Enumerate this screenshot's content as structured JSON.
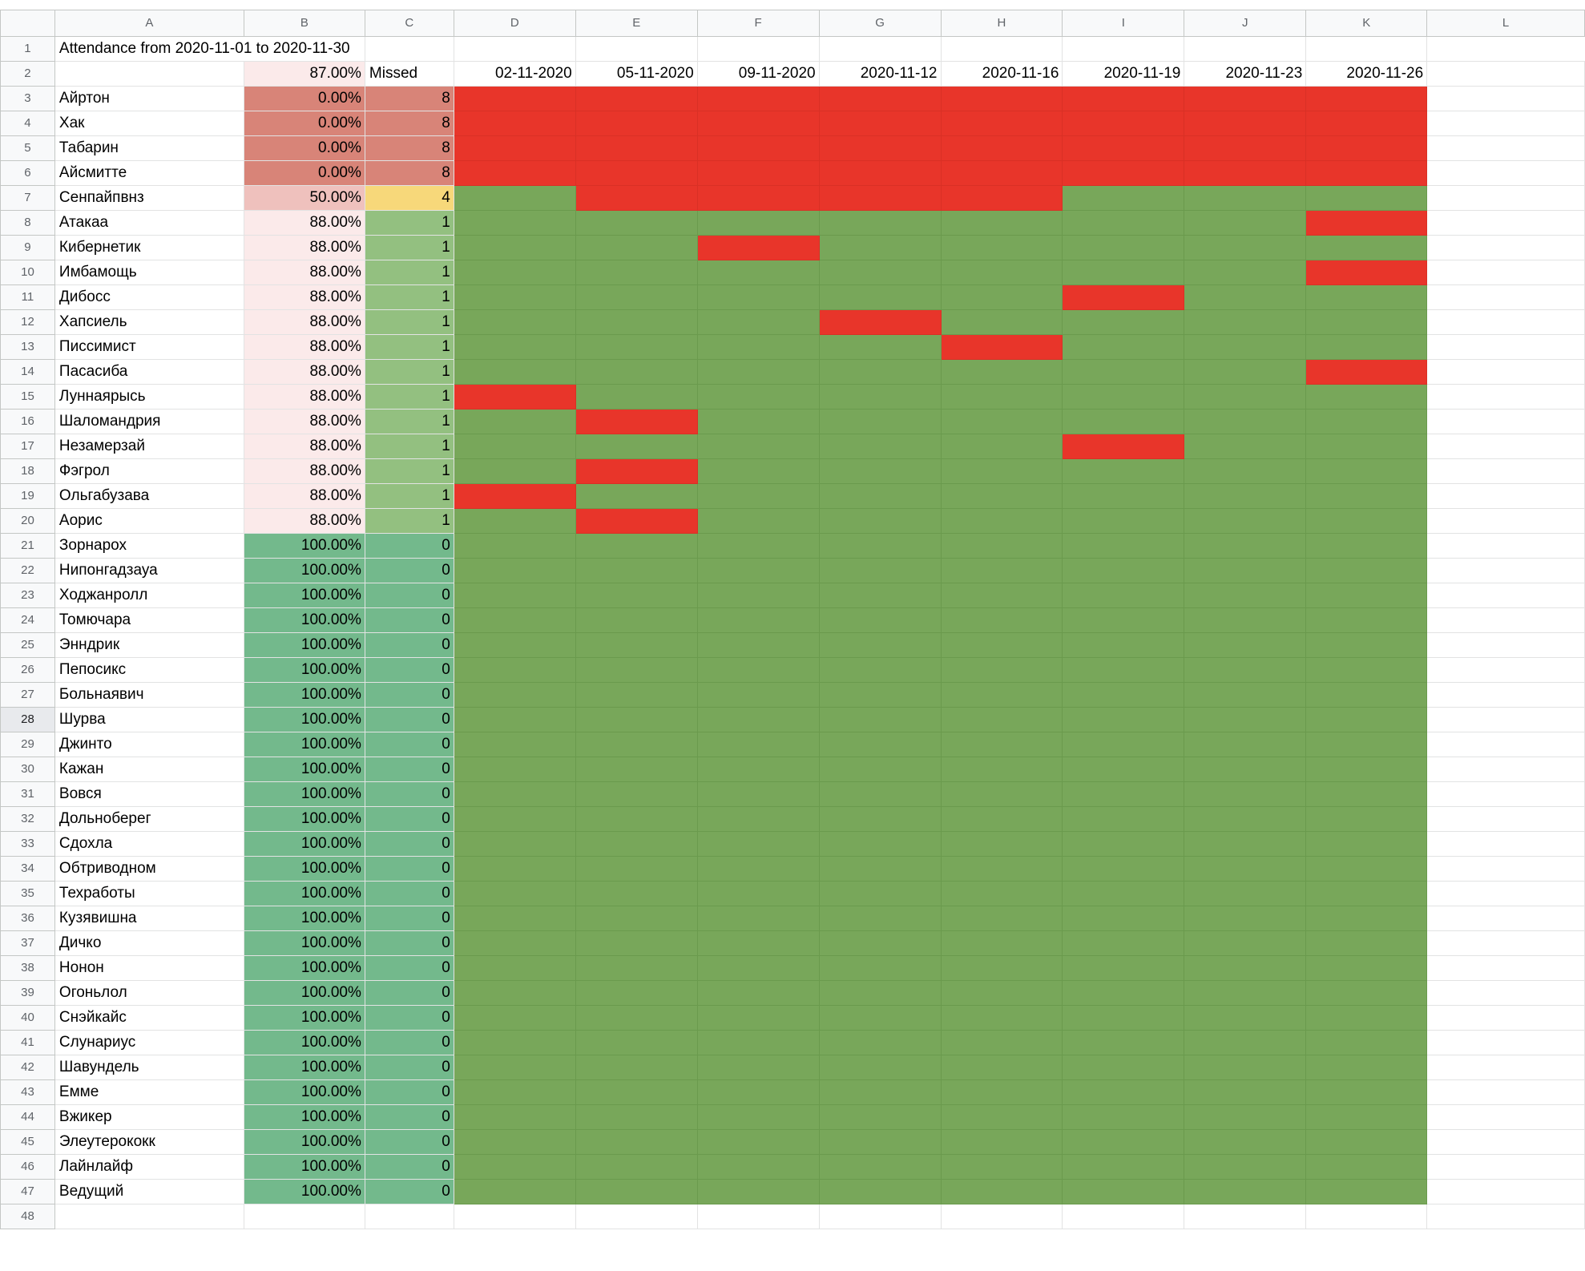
{
  "sheet": {
    "columns": [
      "A",
      "B",
      "C",
      "D",
      "E",
      "F",
      "G",
      "H",
      "I",
      "J",
      "K",
      "L"
    ],
    "title": "Attendance from 2020-11-01 to 2020-11-30",
    "overall_percent": "87.00%",
    "missed_label": "Missed",
    "dates": [
      "02-11-2020",
      "05-11-2020",
      "09-11-2020",
      "2020-11-12",
      "2020-11-16",
      "2020-11-19",
      "2020-11-23",
      "2020-11-26"
    ],
    "selected_row": "28",
    "extra_row": "48",
    "rows": [
      {
        "num": "3",
        "name": "Айртон",
        "pct": "0.00%",
        "missed": "8",
        "absent": [
          0,
          1,
          2,
          3,
          4,
          5,
          6,
          7
        ]
      },
      {
        "num": "4",
        "name": "Хак",
        "pct": "0.00%",
        "missed": "8",
        "absent": [
          0,
          1,
          2,
          3,
          4,
          5,
          6,
          7
        ]
      },
      {
        "num": "5",
        "name": "Табарин",
        "pct": "0.00%",
        "missed": "8",
        "absent": [
          0,
          1,
          2,
          3,
          4,
          5,
          6,
          7
        ]
      },
      {
        "num": "6",
        "name": "Айсмитте",
        "pct": "0.00%",
        "missed": "8",
        "absent": [
          0,
          1,
          2,
          3,
          4,
          5,
          6,
          7
        ]
      },
      {
        "num": "7",
        "name": "Сенпайпвнз",
        "pct": "50.00%",
        "missed": "4",
        "absent": [
          1,
          2,
          3,
          4
        ]
      },
      {
        "num": "8",
        "name": "Атакаа",
        "pct": "88.00%",
        "missed": "1",
        "absent": [
          7
        ]
      },
      {
        "num": "9",
        "name": "Кибернетик",
        "pct": "88.00%",
        "missed": "1",
        "absent": [
          2
        ]
      },
      {
        "num": "10",
        "name": "Имбамощь",
        "pct": "88.00%",
        "missed": "1",
        "absent": [
          7
        ]
      },
      {
        "num": "11",
        "name": "Дибосс",
        "pct": "88.00%",
        "missed": "1",
        "absent": [
          5
        ]
      },
      {
        "num": "12",
        "name": "Хапсиель",
        "pct": "88.00%",
        "missed": "1",
        "absent": [
          3
        ]
      },
      {
        "num": "13",
        "name": "Писсимист",
        "pct": "88.00%",
        "missed": "1",
        "absent": [
          4
        ]
      },
      {
        "num": "14",
        "name": "Пасасиба",
        "pct": "88.00%",
        "missed": "1",
        "absent": [
          7
        ]
      },
      {
        "num": "15",
        "name": "Луннаярысь",
        "pct": "88.00%",
        "missed": "1",
        "absent": [
          0
        ]
      },
      {
        "num": "16",
        "name": "Шаломандрия",
        "pct": "88.00%",
        "missed": "1",
        "absent": [
          1
        ]
      },
      {
        "num": "17",
        "name": "Незамерзай",
        "pct": "88.00%",
        "missed": "1",
        "absent": [
          5
        ]
      },
      {
        "num": "18",
        "name": "Фэгрол",
        "pct": "88.00%",
        "missed": "1",
        "absent": [
          1
        ]
      },
      {
        "num": "19",
        "name": "Ольгабузава",
        "pct": "88.00%",
        "missed": "1",
        "absent": [
          0
        ]
      },
      {
        "num": "20",
        "name": "Аорис",
        "pct": "88.00%",
        "missed": "1",
        "absent": [
          1
        ]
      },
      {
        "num": "21",
        "name": "Зорнарох",
        "pct": "100.00%",
        "missed": "0",
        "absent": []
      },
      {
        "num": "22",
        "name": "Нипонгадзауа",
        "pct": "100.00%",
        "missed": "0",
        "absent": []
      },
      {
        "num": "23",
        "name": "Ходжанролл",
        "pct": "100.00%",
        "missed": "0",
        "absent": []
      },
      {
        "num": "24",
        "name": "Томючара",
        "pct": "100.00%",
        "missed": "0",
        "absent": []
      },
      {
        "num": "25",
        "name": "Энндрик",
        "pct": "100.00%",
        "missed": "0",
        "absent": []
      },
      {
        "num": "26",
        "name": "Пепосикс",
        "pct": "100.00%",
        "missed": "0",
        "absent": []
      },
      {
        "num": "27",
        "name": "Больнаявич",
        "pct": "100.00%",
        "missed": "0",
        "absent": []
      },
      {
        "num": "28",
        "name": "Шурва",
        "pct": "100.00%",
        "missed": "0",
        "absent": []
      },
      {
        "num": "29",
        "name": "Джинто",
        "pct": "100.00%",
        "missed": "0",
        "absent": []
      },
      {
        "num": "30",
        "name": "Кажан",
        "pct": "100.00%",
        "missed": "0",
        "absent": []
      },
      {
        "num": "31",
        "name": "Вовся",
        "pct": "100.00%",
        "missed": "0",
        "absent": []
      },
      {
        "num": "32",
        "name": "Дольноберег",
        "pct": "100.00%",
        "missed": "0",
        "absent": []
      },
      {
        "num": "33",
        "name": "Сдохла",
        "pct": "100.00%",
        "missed": "0",
        "absent": []
      },
      {
        "num": "34",
        "name": "Обтриводном",
        "pct": "100.00%",
        "missed": "0",
        "absent": []
      },
      {
        "num": "35",
        "name": "Техработы",
        "pct": "100.00%",
        "missed": "0",
        "absent": []
      },
      {
        "num": "36",
        "name": "Кузявишна",
        "pct": "100.00%",
        "missed": "0",
        "absent": []
      },
      {
        "num": "37",
        "name": "Дичко",
        "pct": "100.00%",
        "missed": "0",
        "absent": []
      },
      {
        "num": "38",
        "name": "Нонон",
        "pct": "100.00%",
        "missed": "0",
        "absent": []
      },
      {
        "num": "39",
        "name": "Огоньлол",
        "pct": "100.00%",
        "missed": "0",
        "absent": []
      },
      {
        "num": "40",
        "name": "Снэйкайс",
        "pct": "100.00%",
        "missed": "0",
        "absent": []
      },
      {
        "num": "41",
        "name": "Слунариус",
        "pct": "100.00%",
        "missed": "0",
        "absent": []
      },
      {
        "num": "42",
        "name": "Шавундель",
        "pct": "100.00%",
        "missed": "0",
        "absent": []
      },
      {
        "num": "43",
        "name": "Емме",
        "pct": "100.00%",
        "missed": "0",
        "absent": []
      },
      {
        "num": "44",
        "name": "Вжикер",
        "pct": "100.00%",
        "missed": "0",
        "absent": []
      },
      {
        "num": "45",
        "name": "Элеутерококк",
        "pct": "100.00%",
        "missed": "0",
        "absent": []
      },
      {
        "num": "46",
        "name": "Лайнлайф",
        "pct": "100.00%",
        "missed": "0",
        "absent": []
      },
      {
        "num": "47",
        "name": "Ведущий",
        "pct": "100.00%",
        "missed": "0",
        "absent": []
      }
    ],
    "colors": {
      "present": "#78a75a",
      "absent": "#e8352a",
      "pct_zero": "#d88478",
      "pct_half": "#efc1bd",
      "pct_high": "#fbeaea",
      "pct_full": "#73b98c",
      "missed_many": "#d88478",
      "missed_half": "#f7d87a",
      "missed_one": "#93c080",
      "missed_zero": "#73b98c"
    }
  }
}
